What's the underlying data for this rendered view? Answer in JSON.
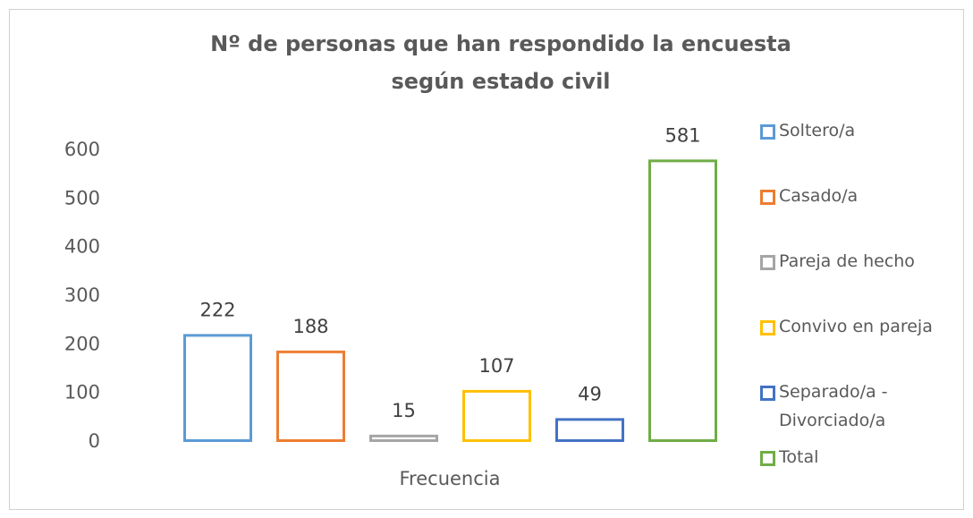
{
  "chart_data": {
    "type": "bar",
    "title": "Nº de personas que han respondido la encuesta según estado civil",
    "categories": [
      "Frecuencia"
    ],
    "series": [
      {
        "name": "Soltero/a",
        "color": "#5b9bd5",
        "values": [
          222
        ]
      },
      {
        "name": "Casado/a",
        "color": "#ed7d31",
        "values": [
          188
        ]
      },
      {
        "name": "Pareja de hecho",
        "color": "#a5a5a5",
        "values": [
          15
        ]
      },
      {
        "name": "Convivo en pareja",
        "color": "#ffc000",
        "values": [
          107
        ]
      },
      {
        "name": "Separado/a - Divorciado/a",
        "color": "#4472c4",
        "values": [
          49
        ]
      },
      {
        "name": "Total",
        "color": "#70ad47",
        "values": [
          581
        ]
      }
    ],
    "ylim": [
      0,
      600
    ],
    "yticks": [
      0,
      100,
      200,
      300,
      400,
      500,
      600
    ],
    "grid": false,
    "legend": "right"
  }
}
